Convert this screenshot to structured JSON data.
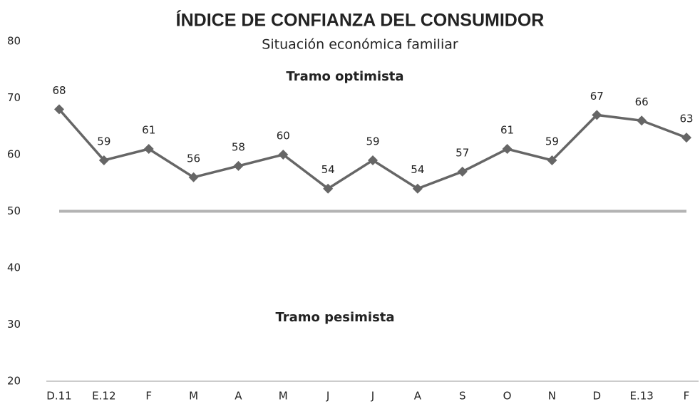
{
  "chart_data": {
    "type": "line",
    "title": "ÍNDICE DE CONFIANZA DEL CONSUMIDOR",
    "subtitle": "Situación económica familiar",
    "categories": [
      "D.11",
      "E.12",
      "F",
      "M",
      "A",
      "M",
      "J",
      "J",
      "A",
      "S",
      "O",
      "N",
      "D",
      "E.13",
      "F"
    ],
    "values": [
      68,
      59,
      61,
      56,
      58,
      60,
      54,
      59,
      54,
      57,
      61,
      59,
      67,
      66,
      63
    ],
    "color": "#666666",
    "ylim": [
      20,
      80
    ],
    "yticks": [
      20,
      30,
      40,
      50,
      60,
      70,
      80
    ],
    "reference_line": 50,
    "reference_color": "#b3b3b3",
    "annotations": [
      "Tramo optimista",
      "Tramo pesimista"
    ]
  }
}
